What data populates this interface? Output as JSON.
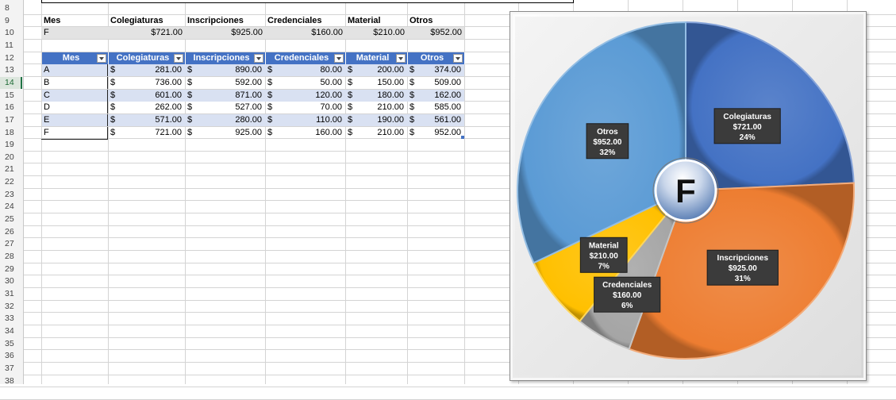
{
  "row_numbers": [
    "8",
    "9",
    "10",
    "11",
    "12",
    "13",
    "14",
    "15",
    "16",
    "17",
    "18",
    "19",
    "20",
    "21",
    "22",
    "23",
    "24",
    "25",
    "26",
    "27",
    "28",
    "29",
    "30",
    "31",
    "32",
    "33",
    "34",
    "35",
    "36",
    "37",
    "38"
  ],
  "selected_row": "14",
  "summary": {
    "headers": [
      "Mes",
      "Colegiaturas",
      "Inscripciones",
      "Credenciales",
      "Material",
      "Otros"
    ],
    "values": [
      "F",
      "$721.00",
      "$925.00",
      "$160.00",
      "$210.00",
      "$952.00"
    ]
  },
  "table": {
    "headers": [
      "Mes",
      "Colegiaturas",
      "Inscripciones",
      "Credenciales",
      "Material",
      "Otros"
    ],
    "currency_symbol": "$",
    "rows": [
      [
        "A",
        "281.00",
        "890.00",
        "80.00",
        "200.00",
        "374.00"
      ],
      [
        "B",
        "736.00",
        "592.00",
        "50.00",
        "150.00",
        "509.00"
      ],
      [
        "C",
        "601.00",
        "871.00",
        "120.00",
        "180.00",
        "162.00"
      ],
      [
        "D",
        "262.00",
        "527.00",
        "70.00",
        "210.00",
        "585.00"
      ],
      [
        "E",
        "571.00",
        "280.00",
        "110.00",
        "190.00",
        "561.00"
      ],
      [
        "F",
        "721.00",
        "925.00",
        "160.00",
        "210.00",
        "952.00"
      ]
    ],
    "header_color": "#4472c4",
    "band_color": "#d9e1f2"
  },
  "chart_data": {
    "type": "pie",
    "center_label": "F",
    "slices": [
      {
        "name": "Colegiaturas",
        "value": 721,
        "value_label": "$721.00",
        "percent_label": "24%",
        "color": "#4472c4"
      },
      {
        "name": "Inscripciones",
        "value": 925,
        "value_label": "$925.00",
        "percent_label": "31%",
        "color": "#ed7d31"
      },
      {
        "name": "Credenciales",
        "value": 160,
        "value_label": "$160.00",
        "percent_label": "6%",
        "color": "#a5a5a5"
      },
      {
        "name": "Material",
        "value": 210,
        "value_label": "$210.00",
        "percent_label": "7%",
        "color": "#ffc000"
      },
      {
        "name": "Otros",
        "value": 952,
        "value_label": "$952.00",
        "percent_label": "32%",
        "color": "#5b9bd5"
      }
    ]
  }
}
